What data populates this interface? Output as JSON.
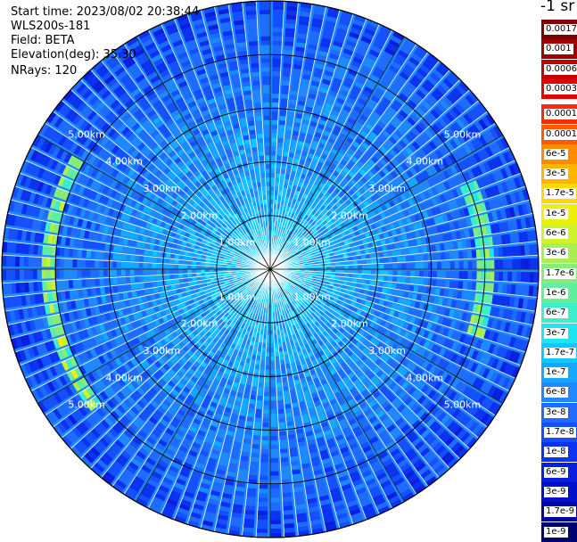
{
  "info": {
    "start_time": "Start time: 2023/08/02 20:38:44",
    "instrument": "WLS200s-181",
    "field": "Field: BETA",
    "elevation": "Elevation(deg): 35.30",
    "nrays": "NRays: 120"
  },
  "unit_label": "-1 sr",
  "scan": {
    "elevation_deg": 35.3,
    "n_rays": 120,
    "max_range_km": 5.0
  },
  "range_rings": [
    {
      "label": "1.00km",
      "km": 1
    },
    {
      "label": "2.00km",
      "km": 2
    },
    {
      "label": "3.00km",
      "km": 3
    },
    {
      "label": "4.00km",
      "km": 4
    },
    {
      "label": "5.00km",
      "km": 5
    }
  ],
  "colorbar": [
    {
      "label": "0.0017",
      "color": "#7a0000"
    },
    {
      "label": "0.001",
      "color": "#a00000"
    },
    {
      "label": "0.0006",
      "color": "#c40000"
    },
    {
      "label": "0.0003",
      "color": "#e80000"
    },
    {
      "label": "0.00017",
      "color": "#ff2a00"
    },
    {
      "label": "0.0001",
      "color": "#ff5a00"
    },
    {
      "label": "6e-5",
      "color": "#ff8c00"
    },
    {
      "label": "3e-5",
      "color": "#ffb400"
    },
    {
      "label": "1.7e-5",
      "color": "#ffd800"
    },
    {
      "label": "1e-5",
      "color": "#f0f000"
    },
    {
      "label": "6e-6",
      "color": "#cff22a"
    },
    {
      "label": "3e-6",
      "color": "#a8f050"
    },
    {
      "label": "1.7e-6",
      "color": "#86ee78"
    },
    {
      "label": "1e-6",
      "color": "#5ef0a0"
    },
    {
      "label": "6e-7",
      "color": "#3af0cc"
    },
    {
      "label": "3e-7",
      "color": "#1ee6f0"
    },
    {
      "label": "1.7e-7",
      "color": "#10c8ff"
    },
    {
      "label": "1e-7",
      "color": "#14a8ff"
    },
    {
      "label": "6e-8",
      "color": "#1e88ff"
    },
    {
      "label": "3e-8",
      "color": "#1e6cff"
    },
    {
      "label": "1.7e-8",
      "color": "#1450ff"
    },
    {
      "label": "1e-8",
      "color": "#0a32f0"
    },
    {
      "label": "6e-9",
      "color": "#0a1ee0"
    },
    {
      "label": "3e-9",
      "color": "#0010c8"
    },
    {
      "label": "1.7e-9",
      "color": "#0008a0"
    },
    {
      "label": "1e-9",
      "color": "#00006e"
    }
  ]
}
